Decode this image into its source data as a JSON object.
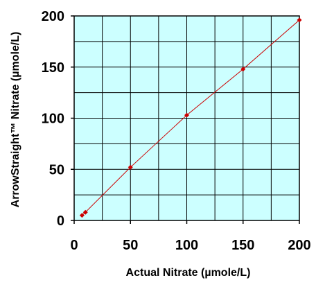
{
  "chart_data": {
    "type": "scatter",
    "title": "",
    "xlabel": "Actual Nitrate (µmole/L)",
    "ylabel": "ArrowStraight™ Nitrate (µmole/L)",
    "xlim": [
      0,
      200
    ],
    "ylim": [
      0,
      200
    ],
    "x_ticks": [
      0,
      50,
      100,
      150,
      200
    ],
    "y_ticks": [
      0,
      50,
      100,
      150,
      200
    ],
    "x_tick_labels": [
      "0",
      "50",
      "100",
      "150",
      "200"
    ],
    "y_tick_labels": [
      "0",
      "50",
      "100",
      "150",
      "200"
    ],
    "grid": true,
    "legend": "none",
    "series": [
      {
        "points": [
          {
            "x": 7,
            "y": 5
          },
          {
            "x": 10,
            "y": 8
          },
          {
            "x": 50,
            "y": 52
          },
          {
            "x": 100,
            "y": 103
          },
          {
            "x": 150,
            "y": 148
          },
          {
            "x": 200,
            "y": 196
          }
        ],
        "marker": "diamond",
        "connected": true,
        "color": "#cc0000"
      }
    ],
    "colors": {
      "plot_background": "#ccffff",
      "grid": "#000000",
      "series": "#cc0000"
    }
  }
}
